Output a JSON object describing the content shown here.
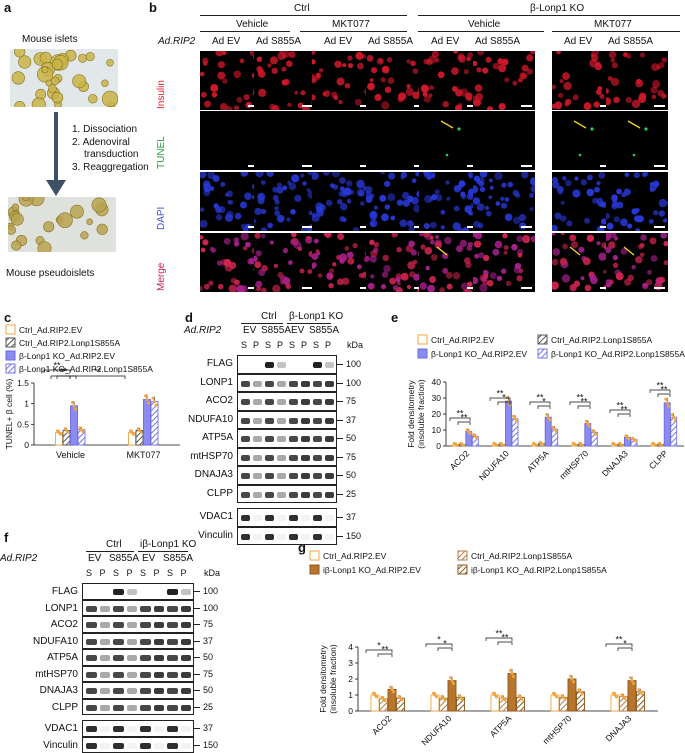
{
  "panel_a": {
    "label": "a",
    "top_title": "Mouse islets",
    "steps": [
      "1. Dissociation",
      "2. Adenoviral",
      "transduction",
      "3. Reaggregation"
    ],
    "bottom_title": "Mouse pseudoislets"
  },
  "panel_b": {
    "label": "b",
    "group_ctrl": "Ctrl",
    "group_ko": "β-Lonp1 KO",
    "vehicle": "Vehicle",
    "mkt": "MKT077",
    "adrip2": "Ad.RIP2",
    "col_ev": "Ad EV",
    "col_s855a": "Ad S855A",
    "rows": [
      "Insulin",
      "TUNEL",
      "DAPI",
      "Merge"
    ],
    "row_colors": [
      "#e0202a",
      "#23a03a",
      "#3a4fd8",
      "#cc2255"
    ]
  },
  "panel_c": {
    "label": "c",
    "legend": [
      "Ctrl_Ad.RIP2.EV",
      "Ctrl_Ad.RIP2.Lonp1S855A",
      "β-Lonp1 KO_Ad.RIP2.EV",
      "β-Lonp1 KO_Ad.RIP2.Lonp1S855A"
    ],
    "ylabel": "TUNEL+ β cell (%)",
    "sig": [
      "**",
      "**",
      "**",
      "**"
    ]
  },
  "panel_d": {
    "label": "d",
    "ctrl": "Ctrl",
    "ko": "β-Lonp1 KO",
    "adrip2": "Ad.RIP2",
    "ev": "EV",
    "s855a": "S855A",
    "kda": "kDa",
    "lanes": [
      "S",
      "P",
      "S",
      "P",
      "S",
      "P",
      "S",
      "P"
    ],
    "proteins": [
      "FLAG",
      "LONP1",
      "ACO2",
      "NDUFA10",
      "ATP5A",
      "mtHSP70",
      "DNAJA3",
      "CLPP",
      "VDAC1",
      "Vinculin"
    ],
    "kda_marks": [
      "100",
      "100",
      "75",
      "37",
      "50",
      "75",
      "50",
      "25",
      "37",
      "150"
    ]
  },
  "panel_e": {
    "label": "e",
    "legend": [
      "Ctrl_Ad.RIP2.EV",
      "Ctrl_Ad.RIP2.Lonp1S855A",
      "β-Lonp1 KO_Ad.RIP2.EV",
      "β-Lonp1 KO_Ad.RIP2.Lonp1S855A"
    ],
    "ylabel": "Fold densitometry (insoluble fraction)",
    "sig": [
      "**",
      "**",
      "**",
      "*",
      "**",
      "*",
      "**",
      "**",
      "**",
      "**",
      "**",
      "**"
    ]
  },
  "panel_f": {
    "label": "f",
    "ctrl": "Ctrl",
    "ko": "iβ-Lonp1 KO",
    "adrip2": "Ad.RIP2",
    "ev": "EV",
    "s855a": "S855A",
    "kda": "kDa",
    "lanes": [
      "S",
      "P",
      "S",
      "P",
      "S",
      "P",
      "S",
      "P"
    ],
    "proteins": [
      "FLAG",
      "LONP1",
      "ACO2",
      "NDUFA10",
      "ATP5A",
      "mtHSP70",
      "DNAJA3",
      "CLPP",
      "VDAC1",
      "Vinculin"
    ],
    "kda_marks": [
      "100",
      "100",
      "75",
      "37",
      "50",
      "75",
      "50",
      "25",
      "37",
      "150"
    ]
  },
  "panel_g": {
    "label": "g",
    "legend": [
      "Ctrl_Ad.RIP2.EV",
      "Ctrl_Ad.RIP2.Lonp1S855A",
      "iβ-Lonp1 KO_Ad.RIP2.EV",
      "iβ-Lonp1 KO_Ad.RIP2.Lonp1S855A"
    ],
    "ylabel": "Fold densitometry (insoluble fraction)",
    "sig": [
      "*",
      "**",
      "*",
      "*",
      "**",
      "**",
      "**",
      "*"
    ]
  },
  "chart_data": [
    {
      "id": "c",
      "type": "bar",
      "categories": [
        "Vehicle",
        "MKT077"
      ],
      "series": [
        {
          "name": "Ctrl_Ad.RIP2.EV",
          "values": [
            0.3,
            0.3
          ]
        },
        {
          "name": "Ctrl_Ad.RIP2.Lonp1S855A",
          "values": [
            0.35,
            0.35
          ]
        },
        {
          "name": "β-Lonp1 KO_Ad.RIP2.EV",
          "values": [
            0.95,
            1.1
          ]
        },
        {
          "name": "β-Lonp1 KO_Ad.RIP2.Lonp1S855A",
          "values": [
            0.37,
            1.05
          ]
        }
      ],
      "ylabel": "TUNEL+ β cell (%)",
      "ylim": [
        0,
        1.5
      ],
      "yticks": [
        "0",
        "0.5",
        "1",
        "1.5"
      ]
    },
    {
      "id": "e",
      "type": "bar",
      "categories": [
        "ACO2",
        "NDUFA10",
        "ATP5A",
        "mtHSP70",
        "DNAJA3",
        "CLPP"
      ],
      "series": [
        {
          "name": "Ctrl_Ad.RIP2.EV",
          "values": [
            1,
            1,
            1,
            1,
            1,
            1
          ]
        },
        {
          "name": "Ctrl_Ad.RIP2.Lonp1S855A",
          "values": [
            1,
            1,
            1.5,
            1,
            1,
            1
          ]
        },
        {
          "name": "β-Lonp1 KO_Ad.RIP2.EV",
          "values": [
            9,
            28,
            18,
            14,
            5.5,
            27
          ]
        },
        {
          "name": "β-Lonp1 KO_Ad.RIP2.Lonp1S855A",
          "values": [
            6,
            17,
            10.5,
            8.5,
            4,
            18
          ]
        }
      ],
      "ylabel": "Fold densitometry (insoluble fraction)",
      "ylim": [
        0,
        40
      ],
      "yticks": [
        "0",
        "10",
        "20",
        "30",
        "40"
      ]
    },
    {
      "id": "g",
      "type": "bar",
      "categories": [
        "ACO2",
        "NDUFA10",
        "ATP5A",
        "mtHSP70",
        "DNAJA3"
      ],
      "series": [
        {
          "name": "Ctrl_Ad.RIP2.EV",
          "values": [
            1,
            1,
            1,
            1,
            1
          ]
        },
        {
          "name": "Ctrl_Ad.RIP2.Lonp1S855A",
          "values": [
            0.75,
            0.8,
            0.8,
            0.85,
            0.9
          ]
        },
        {
          "name": "iβ-Lonp1 KO_Ad.RIP2.EV",
          "values": [
            1.35,
            1.9,
            2.35,
            2.0,
            1.9
          ]
        },
        {
          "name": "iβ-Lonp1 KO_Ad.RIP2.Lonp1S855A",
          "values": [
            0.8,
            0.85,
            0.85,
            1.2,
            1.2
          ]
        }
      ],
      "ylabel": "Fold densitometry (insoluble fraction)",
      "ylim": [
        0,
        4
      ],
      "yticks": [
        "0",
        "1",
        "2",
        "3",
        "4"
      ]
    }
  ]
}
